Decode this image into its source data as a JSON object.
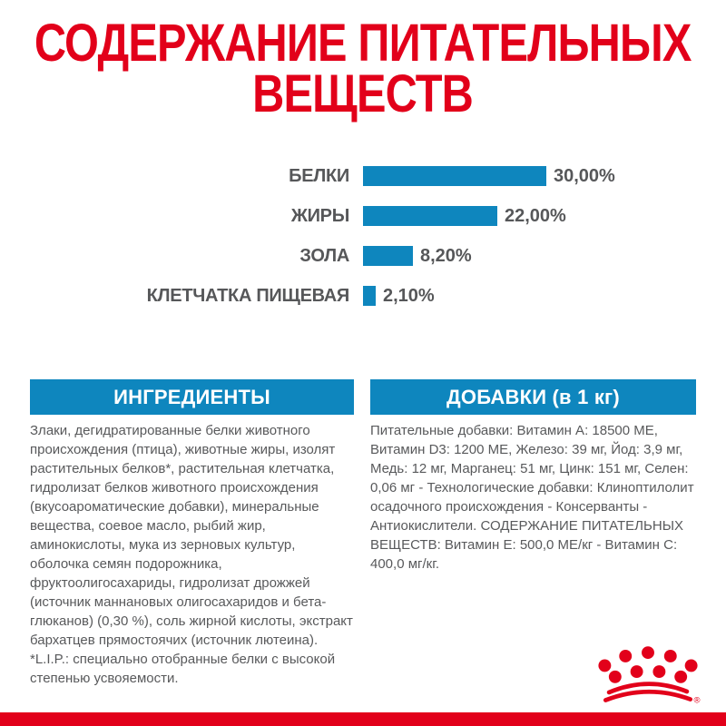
{
  "title": {
    "full": "СОДЕРЖАНИЕ ПИТАТЕЛЬНЫХ ВЕЩЕСТВ",
    "lines": [
      "СОДЕРЖАНИЕ ПИТАТЕЛЬНЫХ",
      "ВЕЩЕСТВ"
    ]
  },
  "chart_data": {
    "type": "bar",
    "title": "СОДЕРЖАНИЕ ПИТАТЕЛЬНЫХ ВЕЩЕСТВ",
    "categories": [
      "БЕЛКИ",
      "ЖИРЫ",
      "ЗОЛА",
      "КЛЕТЧАТКА ПИЩЕВАЯ"
    ],
    "values": [
      30.0,
      22.0,
      8.2,
      2.1
    ],
    "value_labels": [
      "30,00%",
      "22,00%",
      "8,20%",
      "2,10%"
    ],
    "unit": "%",
    "xlim": [
      0,
      30
    ],
    "orientation": "horizontal",
    "grid": false,
    "legend": "none",
    "bar_color": "#0e86be",
    "label_color": "#565759"
  },
  "sections": {
    "ingredients": {
      "header": "ИНГРЕДИЕНТЫ",
      "paragraphs": [
        "Злаки, дегидратированные белки животного происхождения (птица), животные жиры, изолят растительных белков*, растительная клетчатка, гидролизат белков животного происхождения (вкусоароматические добавки), минеральные вещества, соевое масло, рыбий жир, аминокислоты, мука из зерновых культур, оболочка семян подорожника, фруктоолигосахариды, гидролизат дрожжей (источник маннановых олигосахаридов и бета-глюканов) (0,30 %), соль жирной кислоты, экстракт бархатцев прямостоячих (источник лютеина).",
        "*L.I.P.: специально отобранные белки с высокой степенью усвояемости."
      ]
    },
    "additives": {
      "header": "ДОБАВКИ (в 1 кг)",
      "paragraphs": [
        "Питательные добавки: Витамин A: 18500 ME, Витамин D3: 1200 ME, Железо: 39 мг, Йод: 3,9 мг, Медь: 12 мг, Марганец: 51 мг, Цинк: 151 мг, Селен: 0,06 мг - Технологические добавки: Клиноптилолит осадочного происхождения - Консерванты - Антиокислители. СОДЕРЖАНИЕ ПИТАТЕЛЬНЫХ ВЕЩЕСТВ: Витамин E: 500,0 МЕ/кг - Витамин C: 400,0 мг/кг."
      ]
    }
  },
  "logo": {
    "name": "royal-canin-crown",
    "registered_mark": "®"
  },
  "colors": {
    "brand_red": "#e2001a",
    "accent_blue": "#0e86be",
    "text_gray": "#58595b"
  }
}
